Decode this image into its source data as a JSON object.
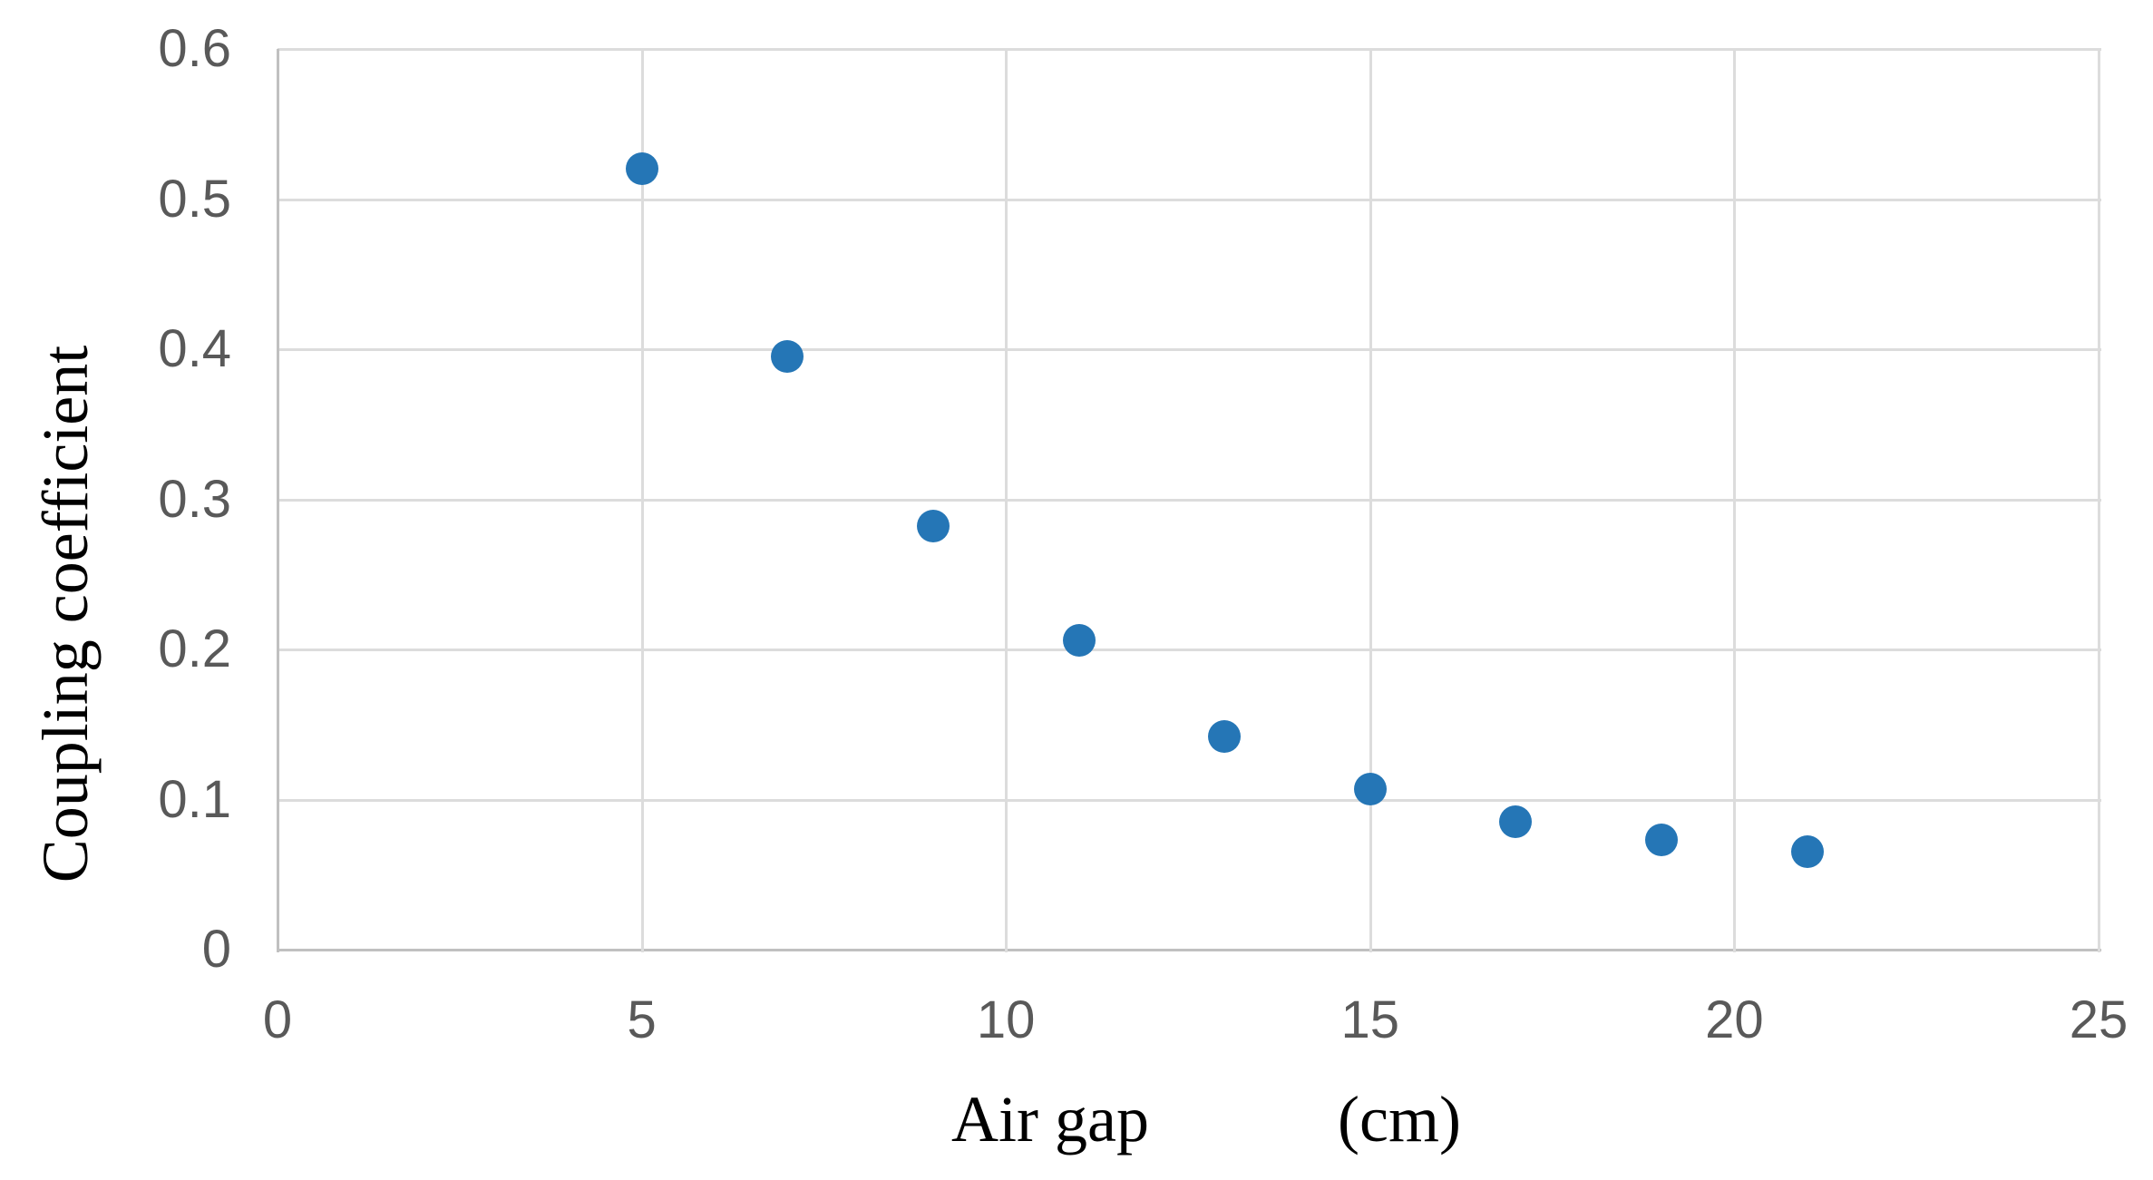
{
  "chart_data": {
    "type": "scatter",
    "title": "",
    "xlabel": "Air gap (cm)",
    "xlabel_main": "Air gap",
    "xlabel_unit": "(cm)",
    "ylabel": "Coupling coefficient",
    "x": [
      5,
      7,
      9,
      11,
      13,
      15,
      17,
      19,
      21
    ],
    "y": [
      0.52,
      0.395,
      0.282,
      0.206,
      0.142,
      0.107,
      0.085,
      0.073,
      0.065
    ],
    "xlim": [
      0,
      25
    ],
    "ylim": [
      0,
      0.6
    ],
    "x_ticks": [
      0,
      5,
      10,
      15,
      20,
      25
    ],
    "x_tick_labels": [
      "0",
      "5",
      "10",
      "15",
      "20",
      "25"
    ],
    "y_ticks": [
      0,
      0.1,
      0.2,
      0.3,
      0.4,
      0.5,
      0.6
    ],
    "y_tick_labels": [
      "0",
      "0.1",
      "0.2",
      "0.3",
      "0.4",
      "0.5",
      "0.6"
    ],
    "grid": true,
    "legend": false,
    "colors": {
      "marker": "#2576B6",
      "gridline": "#DCDCDC",
      "axis_line": "#C0C0C0",
      "tick_label": "#595959",
      "axis_title": "#000000",
      "background": "#FFFFFF"
    }
  }
}
